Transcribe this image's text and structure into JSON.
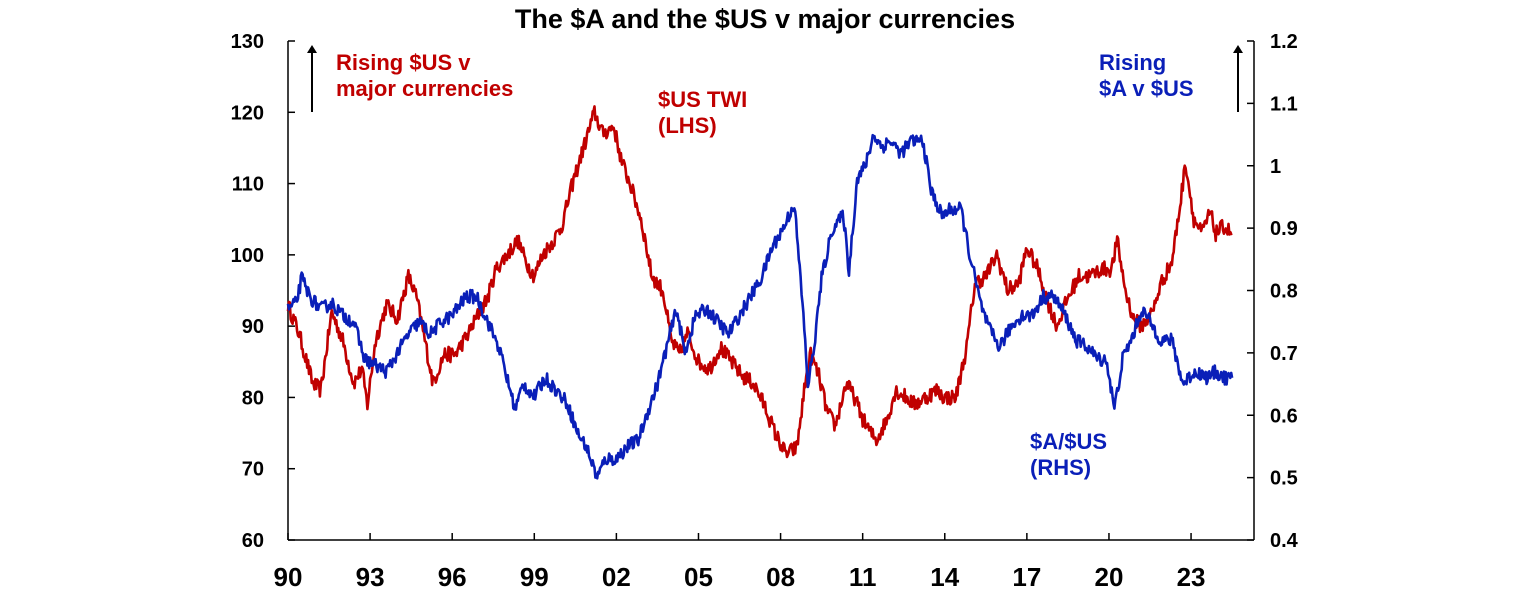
{
  "chart_data": {
    "type": "line",
    "title": "The $A and the $US v major currencies",
    "x_ticks": [
      "90",
      "93",
      "96",
      "99",
      "02",
      "05",
      "08",
      "11",
      "14",
      "17",
      "20",
      "23"
    ],
    "x_range": [
      1990,
      2025.3
    ],
    "y_left": {
      "min": 60,
      "max": 130,
      "ticks": [
        "60",
        "70",
        "80",
        "90",
        "100",
        "110",
        "120",
        "130"
      ]
    },
    "y_right": {
      "min": 0.4,
      "max": 1.2,
      "ticks": [
        "0.4",
        "0.5",
        "0.6",
        "0.7",
        "0.8",
        "0.9",
        "1",
        "1.1",
        "1.2"
      ]
    },
    "colors": {
      "usd": "#c00000",
      "aud": "#0a1fb8"
    },
    "annotations": {
      "rising_usd": [
        "Rising $US v",
        "major currencies"
      ],
      "usd_label": [
        "$US TWI",
        "(LHS)"
      ],
      "rising_aud": [
        "Rising",
        "$A v $US"
      ],
      "aud_label": [
        "$A/$US",
        "(RHS)"
      ]
    },
    "series": [
      {
        "axis": "left",
        "points": [
          [
            1990.0,
            93
          ],
          [
            1990.4,
            89
          ],
          [
            1990.9,
            82
          ],
          [
            1991.2,
            81
          ],
          [
            1991.6,
            92
          ],
          [
            1992.0,
            88
          ],
          [
            1992.4,
            82
          ],
          [
            1992.7,
            84
          ],
          [
            1992.9,
            79
          ],
          [
            1993.2,
            88
          ],
          [
            1993.6,
            93
          ],
          [
            1994.0,
            91
          ],
          [
            1994.4,
            97
          ],
          [
            1994.7,
            94
          ],
          [
            1995.0,
            88
          ],
          [
            1995.3,
            82
          ],
          [
            1995.7,
            86
          ],
          [
            1996.1,
            86
          ],
          [
            1996.6,
            89
          ],
          [
            1997.0,
            92
          ],
          [
            1997.3,
            94
          ],
          [
            1997.6,
            98
          ],
          [
            1998.0,
            100
          ],
          [
            1998.4,
            102
          ],
          [
            1998.7,
            99
          ],
          [
            1999.0,
            97
          ],
          [
            1999.3,
            100
          ],
          [
            1999.7,
            102
          ],
          [
            2000.0,
            104
          ],
          [
            2000.4,
            110
          ],
          [
            2000.8,
            115
          ],
          [
            2001.2,
            120
          ],
          [
            2001.5,
            117
          ],
          [
            2001.9,
            118
          ],
          [
            2002.2,
            113
          ],
          [
            2002.5,
            110
          ],
          [
            2002.9,
            105
          ],
          [
            2003.3,
            97
          ],
          [
            2003.7,
            95
          ],
          [
            2004.0,
            88
          ],
          [
            2004.3,
            86
          ],
          [
            2004.6,
            89
          ],
          [
            2005.0,
            85
          ],
          [
            2005.4,
            84
          ],
          [
            2005.8,
            87
          ],
          [
            2006.2,
            85
          ],
          [
            2006.6,
            83
          ],
          [
            2007.0,
            82
          ],
          [
            2007.4,
            79
          ],
          [
            2007.8,
            75
          ],
          [
            2008.2,
            72
          ],
          [
            2008.6,
            73
          ],
          [
            2008.9,
            82
          ],
          [
            2009.1,
            86
          ],
          [
            2009.4,
            83
          ],
          [
            2009.7,
            78
          ],
          [
            2010.0,
            76
          ],
          [
            2010.4,
            82
          ],
          [
            2010.7,
            80
          ],
          [
            2011.0,
            77
          ],
          [
            2011.3,
            75
          ],
          [
            2011.5,
            74
          ],
          [
            2011.9,
            77
          ],
          [
            2012.2,
            81
          ],
          [
            2012.6,
            80
          ],
          [
            2012.9,
            79
          ],
          [
            2013.3,
            80
          ],
          [
            2013.7,
            81
          ],
          [
            2014.0,
            80
          ],
          [
            2014.4,
            80
          ],
          [
            2014.8,
            87
          ],
          [
            2015.1,
            96
          ],
          [
            2015.5,
            97
          ],
          [
            2015.9,
            100
          ],
          [
            2016.3,
            95
          ],
          [
            2016.7,
            96
          ],
          [
            2017.0,
            101
          ],
          [
            2017.4,
            98
          ],
          [
            2017.8,
            93
          ],
          [
            2018.1,
            90
          ],
          [
            2018.5,
            94
          ],
          [
            2018.9,
            97
          ],
          [
            2019.3,
            97
          ],
          [
            2019.7,
            98
          ],
          [
            2020.1,
            98
          ],
          [
            2020.3,
            102
          ],
          [
            2020.6,
            95
          ],
          [
            2020.9,
            91
          ],
          [
            2021.2,
            90
          ],
          [
            2021.6,
            92
          ],
          [
            2021.9,
            96
          ],
          [
            2022.3,
            99
          ],
          [
            2022.6,
            107
          ],
          [
            2022.8,
            113
          ],
          [
            2023.1,
            105
          ],
          [
            2023.4,
            103
          ],
          [
            2023.7,
            106
          ],
          [
            2023.9,
            103
          ],
          [
            2024.2,
            104
          ],
          [
            2024.5,
            103
          ]
        ]
      },
      {
        "axis": "right",
        "points": [
          [
            1990.0,
            0.77
          ],
          [
            1990.3,
            0.78
          ],
          [
            1990.5,
            0.82
          ],
          [
            1990.8,
            0.79
          ],
          [
            1991.2,
            0.77
          ],
          [
            1991.6,
            0.78
          ],
          [
            1992.0,
            0.76
          ],
          [
            1992.4,
            0.75
          ],
          [
            1992.8,
            0.69
          ],
          [
            1993.2,
            0.68
          ],
          [
            1993.6,
            0.67
          ],
          [
            1994.0,
            0.7
          ],
          [
            1994.4,
            0.73
          ],
          [
            1994.8,
            0.75
          ],
          [
            1995.2,
            0.73
          ],
          [
            1995.6,
            0.75
          ],
          [
            1996.0,
            0.76
          ],
          [
            1996.5,
            0.79
          ],
          [
            1996.9,
            0.79
          ],
          [
            1997.3,
            0.75
          ],
          [
            1997.7,
            0.71
          ],
          [
            1998.0,
            0.66
          ],
          [
            1998.3,
            0.61
          ],
          [
            1998.6,
            0.65
          ],
          [
            1999.0,
            0.63
          ],
          [
            1999.4,
            0.66
          ],
          [
            1999.8,
            0.64
          ],
          [
            2000.2,
            0.62
          ],
          [
            2000.6,
            0.57
          ],
          [
            2000.9,
            0.55
          ],
          [
            2001.3,
            0.5
          ],
          [
            2001.6,
            0.53
          ],
          [
            2002.0,
            0.53
          ],
          [
            2002.4,
            0.55
          ],
          [
            2002.8,
            0.56
          ],
          [
            2003.1,
            0.6
          ],
          [
            2003.5,
            0.65
          ],
          [
            2003.9,
            0.72
          ],
          [
            2004.2,
            0.77
          ],
          [
            2004.5,
            0.7
          ],
          [
            2004.9,
            0.76
          ],
          [
            2005.3,
            0.77
          ],
          [
            2005.7,
            0.75
          ],
          [
            2006.1,
            0.73
          ],
          [
            2006.5,
            0.76
          ],
          [
            2006.9,
            0.79
          ],
          [
            2007.3,
            0.82
          ],
          [
            2007.7,
            0.87
          ],
          [
            2008.1,
            0.9
          ],
          [
            2008.5,
            0.94
          ],
          [
            2008.8,
            0.78
          ],
          [
            2009.0,
            0.65
          ],
          [
            2009.2,
            0.7
          ],
          [
            2009.5,
            0.82
          ],
          [
            2009.9,
            0.9
          ],
          [
            2010.3,
            0.92
          ],
          [
            2010.5,
            0.83
          ],
          [
            2010.8,
            0.98
          ],
          [
            2011.1,
            1.0
          ],
          [
            2011.4,
            1.05
          ],
          [
            2011.7,
            1.03
          ],
          [
            2012.0,
            1.04
          ],
          [
            2012.4,
            1.02
          ],
          [
            2012.8,
            1.04
          ],
          [
            2013.2,
            1.04
          ],
          [
            2013.5,
            0.96
          ],
          [
            2013.9,
            0.92
          ],
          [
            2014.2,
            0.93
          ],
          [
            2014.6,
            0.93
          ],
          [
            2014.9,
            0.86
          ],
          [
            2015.3,
            0.78
          ],
          [
            2015.6,
            0.74
          ],
          [
            2016.0,
            0.71
          ],
          [
            2016.4,
            0.74
          ],
          [
            2016.8,
            0.76
          ],
          [
            2017.2,
            0.76
          ],
          [
            2017.6,
            0.79
          ],
          [
            2018.0,
            0.79
          ],
          [
            2018.4,
            0.76
          ],
          [
            2018.8,
            0.72
          ],
          [
            2019.2,
            0.71
          ],
          [
            2019.6,
            0.69
          ],
          [
            2019.9,
            0.69
          ],
          [
            2020.2,
            0.61
          ],
          [
            2020.5,
            0.69
          ],
          [
            2020.9,
            0.73
          ],
          [
            2021.2,
            0.77
          ],
          [
            2021.5,
            0.75
          ],
          [
            2021.9,
            0.72
          ],
          [
            2022.3,
            0.72
          ],
          [
            2022.7,
            0.65
          ],
          [
            2022.9,
            0.66
          ],
          [
            2023.2,
            0.67
          ],
          [
            2023.6,
            0.66
          ],
          [
            2023.9,
            0.67
          ],
          [
            2024.2,
            0.66
          ],
          [
            2024.5,
            0.66
          ]
        ]
      }
    ]
  }
}
